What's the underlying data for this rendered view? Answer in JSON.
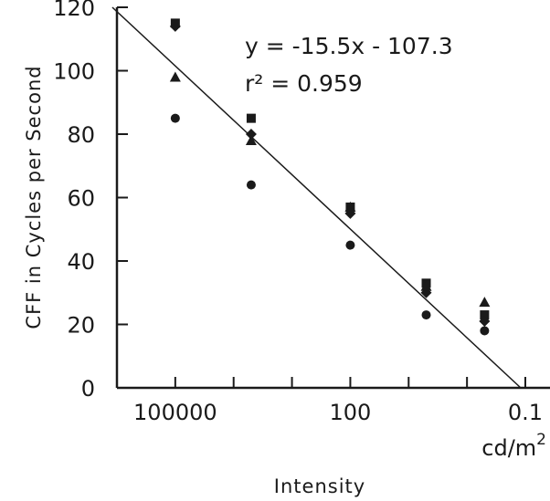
{
  "chart_data": {
    "type": "scatter",
    "title": "",
    "xlabel": "Intensity",
    "x_unit_label": "cd/m",
    "x_unit_superscript": "2",
    "ylabel": "CFF in Cycles per Second",
    "x_scale": "log",
    "x_reversed": true,
    "xlim": [
      1000000,
      0.1
    ],
    "ylim": [
      0,
      120
    ],
    "y_ticks": [
      0,
      20,
      40,
      60,
      80,
      100,
      120
    ],
    "x_ticks": [
      {
        "value": 100000,
        "label": "100000"
      },
      {
        "value": 100,
        "label": "100"
      },
      {
        "value": 0.1,
        "label": "0.1"
      }
    ],
    "grid": false,
    "legend": "none",
    "annotations": [
      {
        "text": "y = -15.5x - 107.3"
      },
      {
        "text": "r² = 0.959"
      }
    ],
    "fit_line": {
      "points": [
        [
          1200000,
          120
        ],
        [
          0.12,
          0
        ]
      ]
    },
    "series": [
      {
        "marker": "square",
        "x": [
          100000,
          5000,
          100,
          5,
          0.5
        ],
        "y": [
          115,
          85,
          57,
          33,
          23
        ]
      },
      {
        "marker": "diamond",
        "x": [
          100000,
          5000,
          100,
          5,
          0.5
        ],
        "y": [
          114,
          80,
          55,
          30,
          21
        ]
      },
      {
        "marker": "triangle",
        "x": [
          100000,
          5000,
          100,
          5,
          0.5
        ],
        "y": [
          98,
          78,
          57,
          32,
          27
        ]
      },
      {
        "marker": "circle",
        "x": [
          100000,
          5000,
          100,
          5,
          0.5
        ],
        "y": [
          85,
          64,
          45,
          23,
          18
        ]
      }
    ],
    "colors": {
      "marks": "#1a1a1a",
      "background": "#ffffff"
    }
  }
}
